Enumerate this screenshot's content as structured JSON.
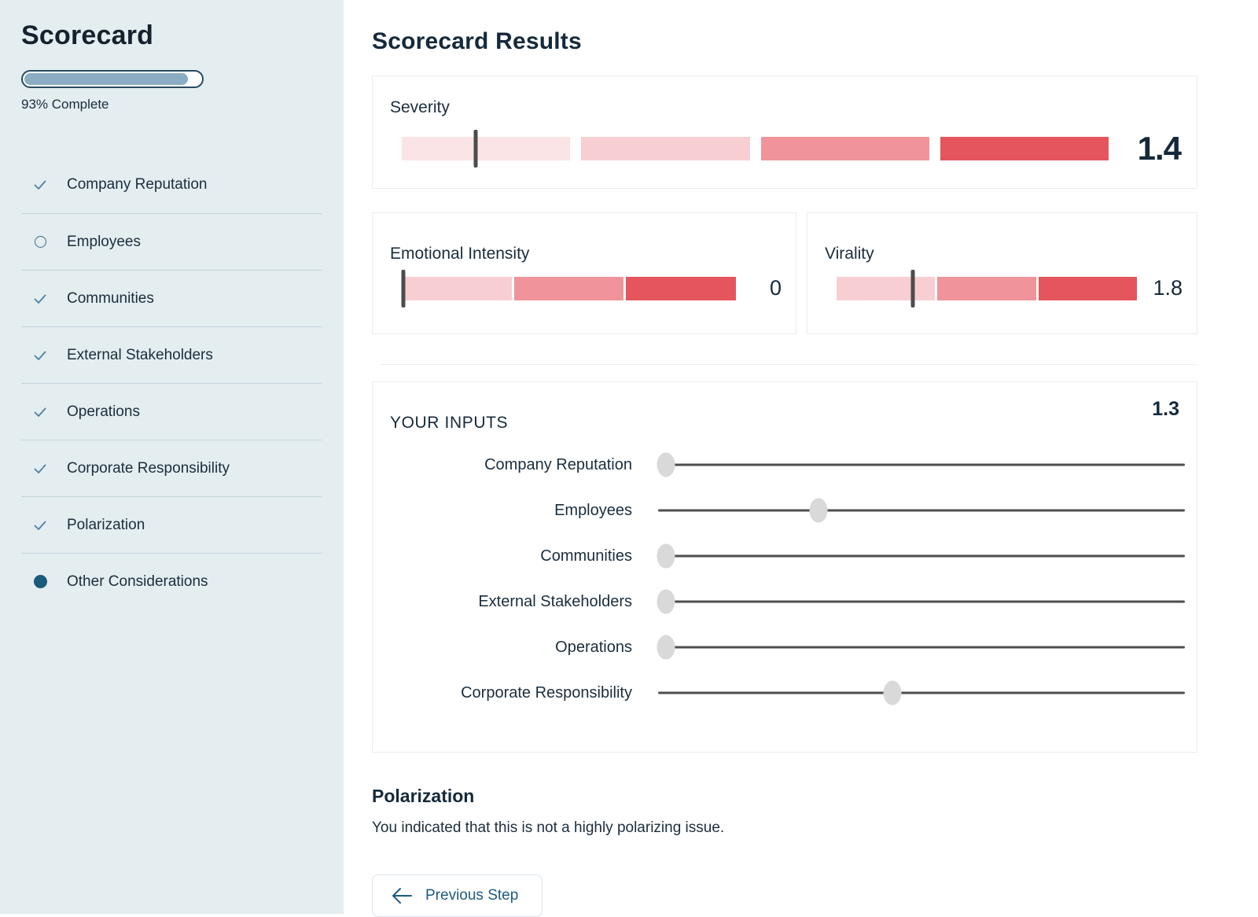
{
  "sidebar": {
    "title": "Scorecard",
    "progress_percent": 93,
    "progress_label": "93% Complete",
    "items": [
      {
        "label": "Company Reputation",
        "status": "complete"
      },
      {
        "label": "Employees",
        "status": "incomplete"
      },
      {
        "label": "Communities",
        "status": "complete"
      },
      {
        "label": "External Stakeholders",
        "status": "complete"
      },
      {
        "label": "Operations",
        "status": "complete"
      },
      {
        "label": "Corporate Responsibility",
        "status": "complete"
      },
      {
        "label": "Polarization",
        "status": "complete"
      },
      {
        "label": "Other Considerations",
        "status": "current"
      }
    ]
  },
  "main": {
    "title": "Scorecard Results"
  },
  "results": {
    "severity": {
      "label": "Severity",
      "value": "1.4",
      "segments": 4,
      "marker_percent": 10.5
    },
    "emotional_intensity": {
      "label": "Emotional Intensity",
      "value": "0",
      "segments": 3,
      "marker_percent": 0.4
    },
    "virality": {
      "label": "Virality",
      "value": "1.8",
      "segments": 3,
      "marker_percent": 25.5
    }
  },
  "inputs": {
    "title": "YOUR INPUTS",
    "value": "1.3",
    "sliders": [
      {
        "label": "Company Reputation",
        "percent": 1.5
      },
      {
        "label": "Employees",
        "percent": 30.5
      },
      {
        "label": "Communities",
        "percent": 1.5
      },
      {
        "label": "External Stakeholders",
        "percent": 1.5
      },
      {
        "label": "Operations",
        "percent": 1.5
      },
      {
        "label": "Corporate Responsibility",
        "percent": 44.5
      }
    ]
  },
  "polarization": {
    "title": "Polarization",
    "text": "You indicated that this is not a highly polarizing issue."
  },
  "footer": {
    "previous_label": "Previous Step"
  },
  "colors": {
    "sidebar_bg": "#e4edf0",
    "text_dark": "#1a2c3b",
    "accent_blue": "#1e5b7e",
    "check_icon": "#4e80a3",
    "circle_icon": "#3a6d90",
    "dot_icon": "#1c5a7d",
    "progress_fill": "#8badc1",
    "progress_border": "#2a4a61",
    "divider": "#c3d5de",
    "card_border": "#e7eef2",
    "marker": "#4c4c4c",
    "slider_track": "#4e4e4e",
    "slider_thumb": "#d9d9d9",
    "gauge_segments_4": [
      "#fae4e6",
      "#f7ced2",
      "#f0939a",
      "#e5555e"
    ],
    "gauge_segments_3": [
      "#f7ced2",
      "#f0939a",
      "#e5555e"
    ]
  }
}
